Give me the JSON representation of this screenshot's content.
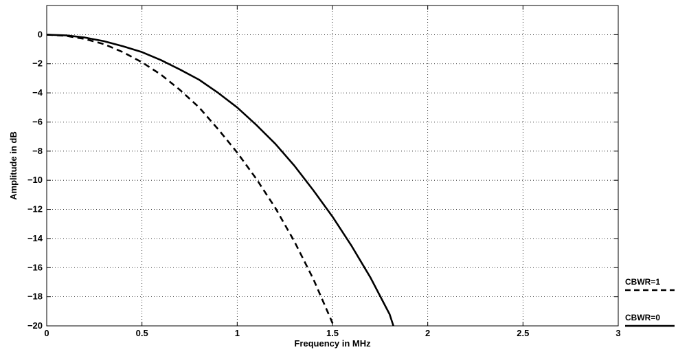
{
  "chart_data": {
    "type": "line",
    "title": "",
    "xlabel": "Frequency in MHz",
    "ylabel": "Amplitude in dB",
    "xlim": [
      0,
      3
    ],
    "ylim": [
      -20,
      2
    ],
    "xticks": [
      0,
      0.5,
      1,
      1.5,
      2,
      2.5,
      3
    ],
    "xtick_labels": [
      "0",
      "0.5",
      "1",
      "1.5",
      "2",
      "2.5",
      "3"
    ],
    "yticks": [
      0,
      -2,
      -4,
      -6,
      -8,
      -10,
      -12,
      -14,
      -16,
      -18,
      -20
    ],
    "ytick_labels": [
      "0",
      "−2",
      "−4",
      "−6",
      "−8",
      "−10",
      "−12",
      "−14",
      "−16",
      "−18",
      "−20"
    ],
    "grid": true,
    "legend_position": "right, outside plot",
    "series": [
      {
        "name": "CBWR=0",
        "style": "solid",
        "color": "#000000",
        "x": [
          0,
          0.1,
          0.2,
          0.3,
          0.4,
          0.5,
          0.6,
          0.7,
          0.8,
          0.9,
          1.0,
          1.1,
          1.2,
          1.3,
          1.4,
          1.5,
          1.6,
          1.7,
          1.8,
          1.82
        ],
        "y": [
          0,
          -0.05,
          -0.2,
          -0.45,
          -0.8,
          -1.2,
          -1.75,
          -2.4,
          -3.1,
          -4.0,
          -5.0,
          -6.2,
          -7.5,
          -9.0,
          -10.7,
          -12.5,
          -14.5,
          -16.7,
          -19.2,
          -20
        ]
      },
      {
        "name": "CBWR=1",
        "style": "dashed",
        "color": "#000000",
        "x": [
          0,
          0.1,
          0.2,
          0.3,
          0.4,
          0.5,
          0.6,
          0.7,
          0.8,
          0.9,
          1.0,
          1.1,
          1.2,
          1.3,
          1.4,
          1.5,
          1.51
        ],
        "y": [
          0,
          -0.08,
          -0.3,
          -0.65,
          -1.2,
          -1.9,
          -2.75,
          -3.8,
          -5.0,
          -6.5,
          -8.1,
          -9.9,
          -11.9,
          -14.2,
          -16.8,
          -19.8,
          -20
        ]
      }
    ]
  }
}
